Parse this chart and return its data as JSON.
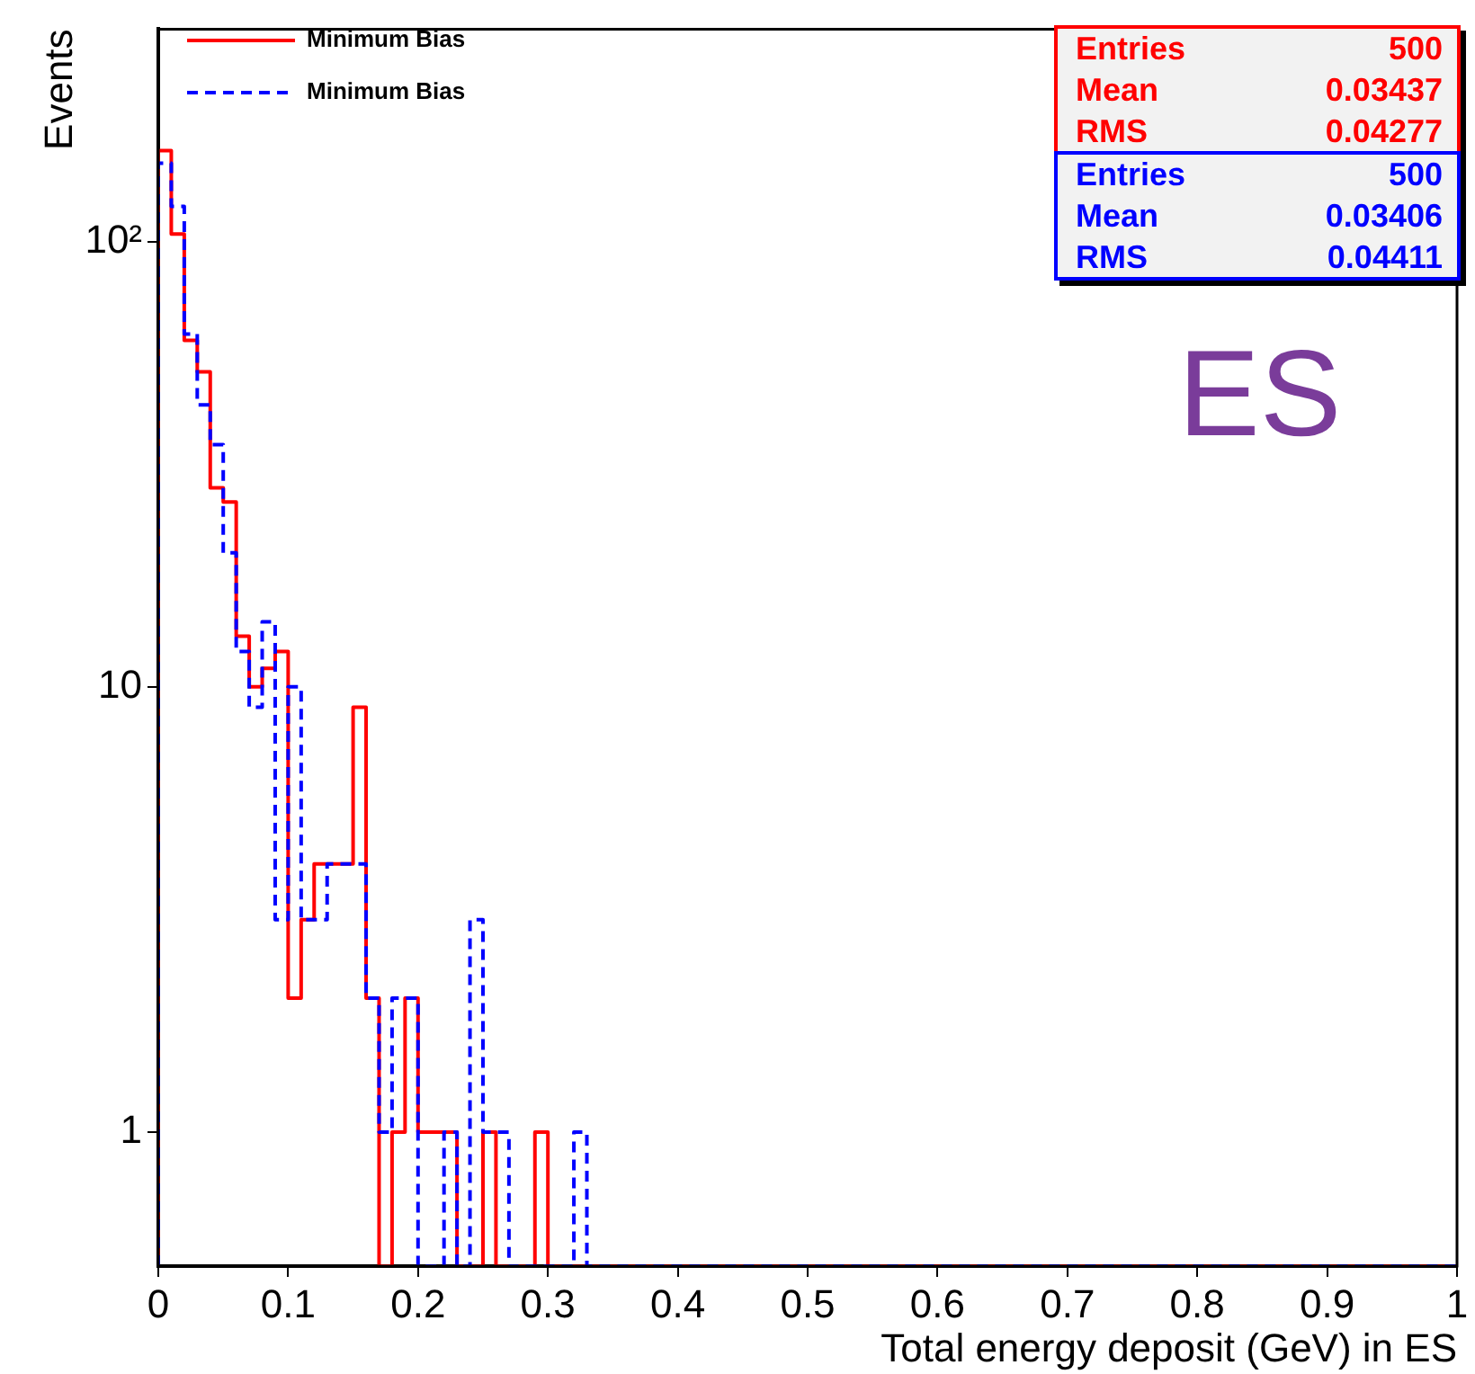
{
  "chart_data": {
    "type": "histogram",
    "xlabel": "Total energy deposit (GeV) in ES",
    "ylabel": "Events",
    "bins": [
      0,
      0.01,
      0.02,
      0.03,
      0.04,
      0.05,
      0.06,
      0.07,
      0.08,
      0.09,
      0.1,
      0.11,
      0.12,
      0.13,
      0.14,
      0.15,
      0.16,
      0.17,
      0.18,
      0.19,
      0.2,
      0.21,
      0.22,
      0.23,
      0.24,
      0.25,
      0.26,
      0.27,
      0.28,
      0.29,
      0.3,
      0.31,
      0.32,
      0.33,
      0.34,
      0.35,
      0.36,
      0.37,
      0.38,
      0.39,
      0.4,
      0.41,
      0.42,
      0.43,
      0.44,
      0.45,
      0.46,
      0.47,
      0.48,
      0.49,
      0.5,
      0.51,
      0.52,
      0.53,
      0.54,
      0.55,
      0.56,
      0.57,
      0.58,
      0.59,
      0.6,
      0.61,
      0.62,
      0.63,
      0.64,
      0.65,
      0.66,
      0.67,
      0.68,
      0.69,
      0.7,
      0.71,
      0.72,
      0.73,
      0.74,
      0.75,
      0.76,
      0.77,
      0.78,
      0.79,
      0.8,
      0.81,
      0.82,
      0.83,
      0.84,
      0.85,
      0.86,
      0.87,
      0.88,
      0.89,
      0.9,
      0.91,
      0.92,
      0.93,
      0.94,
      0.95,
      0.96,
      0.97,
      0.98,
      0.99,
      1
    ],
    "series": [
      {
        "name": "Minimum Bias",
        "color": "#ff0000",
        "line_style": "solid",
        "values": [
          160,
          104,
          60,
          51,
          28,
          26,
          13,
          10,
          11,
          12,
          2,
          3,
          4,
          4,
          4,
          9,
          2,
          null,
          1,
          2,
          1,
          1,
          1,
          null,
          null,
          1,
          null,
          null,
          null,
          1,
          null,
          null,
          null,
          null,
          null,
          null,
          null,
          null,
          null,
          null,
          null,
          null,
          null,
          null,
          null,
          null,
          null,
          null,
          null,
          null,
          null,
          null,
          null,
          null,
          null,
          null,
          null,
          null,
          null,
          null,
          null,
          null,
          null,
          null,
          null,
          null,
          null,
          null,
          null,
          null,
          null,
          null,
          null,
          null,
          null,
          null,
          null,
          null,
          null,
          null,
          null,
          null,
          null,
          null,
          null,
          null,
          null,
          null,
          null,
          null,
          null,
          null,
          null,
          null,
          null,
          null,
          null,
          null,
          null,
          null
        ]
      },
      {
        "name": "Minimum Bias",
        "color": "#0000ff",
        "line_style": "dashed",
        "values": [
          150,
          120,
          62,
          43,
          35,
          20,
          12,
          9,
          14,
          3,
          10,
          3,
          3,
          4,
          4,
          4,
          2,
          1,
          2,
          2,
          null,
          null,
          1,
          null,
          3,
          1,
          1,
          null,
          null,
          null,
          null,
          null,
          1,
          null,
          null,
          null,
          null,
          null,
          null,
          null,
          null,
          null,
          null,
          null,
          null,
          null,
          null,
          null,
          null,
          null,
          null,
          null,
          null,
          null,
          null,
          null,
          null,
          null,
          null,
          null,
          null,
          null,
          null,
          null,
          null,
          null,
          null,
          null,
          null,
          null,
          null,
          null,
          null,
          null,
          null,
          null,
          null,
          null,
          null,
          null,
          null,
          null,
          null,
          null,
          null,
          null,
          null,
          null,
          null,
          null,
          null,
          null,
          null,
          null,
          null,
          null,
          null,
          null,
          null,
          null
        ]
      }
    ],
    "xlim": [
      0,
      1
    ],
    "xticks": [
      0,
      0.1,
      0.2,
      0.3,
      0.4,
      0.5,
      0.6,
      0.7,
      0.8,
      0.9,
      1
    ],
    "ylim": [
      0.5,
      300
    ],
    "yticks": [
      1,
      10,
      {
        "value": 100,
        "label": "10²"
      }
    ],
    "log": true,
    "grid": false,
    "legend": "top left",
    "annotations": [
      "Entries",
      "500",
      "Mean",
      "0.03437",
      "RMS",
      "0.04277",
      "Entries",
      "500",
      "Mean",
      "0.03406",
      "RMS",
      "0.04411",
      "ES"
    ]
  }
}
